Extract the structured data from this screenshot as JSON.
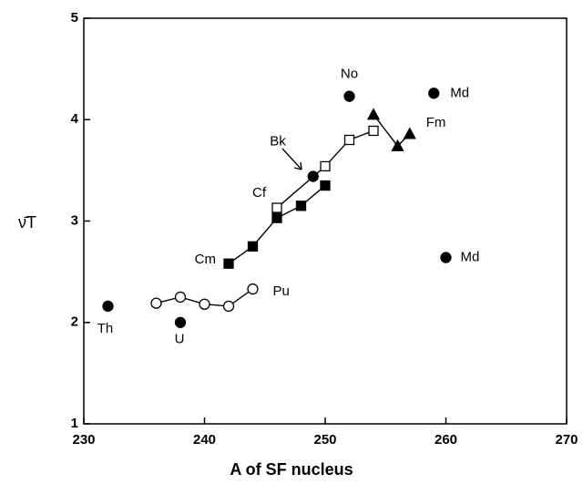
{
  "chart_data": {
    "type": "scatter",
    "xlabel": "A of SF nucleus",
    "ylabel": "ν̄T",
    "xlim": [
      230,
      270
    ],
    "ylim": [
      1,
      5
    ],
    "xticks": [
      230,
      240,
      250,
      260,
      270
    ],
    "yticks": [
      1,
      2,
      3,
      4,
      5
    ],
    "series": [
      {
        "name": "Pu",
        "color": "#000000",
        "marker": "circle",
        "filled": false,
        "line": true,
        "x": [
          236,
          238,
          240,
          242,
          244
        ],
        "values": [
          2.19,
          2.25,
          2.18,
          2.16,
          2.33
        ]
      },
      {
        "name": "Cm",
        "color": "#000000",
        "marker": "square",
        "filled": true,
        "line": true,
        "x": [
          242,
          244,
          246,
          248,
          250
        ],
        "values": [
          2.58,
          2.75,
          3.03,
          3.15,
          3.35
        ]
      },
      {
        "name": "Cf",
        "color": "#000000",
        "marker": "square",
        "filled": false,
        "line": true,
        "x": [
          246,
          250,
          252,
          254
        ],
        "values": [
          3.13,
          3.54,
          3.8,
          3.89
        ]
      },
      {
        "name": "Bk",
        "color": "#000000",
        "marker": "circle",
        "filled": true,
        "line": false,
        "x": [
          249
        ],
        "values": [
          3.44
        ]
      },
      {
        "name": "Fm",
        "color": "#000000",
        "marker": "triangle",
        "filled": true,
        "line": true,
        "x": [
          254,
          256,
          257
        ],
        "values": [
          4.05,
          3.74,
          3.86
        ]
      },
      {
        "name": "Th",
        "color": "#000000",
        "marker": "circle",
        "filled": true,
        "line": false,
        "x": [
          232
        ],
        "values": [
          2.16
        ]
      },
      {
        "name": "U",
        "color": "#000000",
        "marker": "circle",
        "filled": true,
        "line": false,
        "x": [
          238
        ],
        "values": [
          2.0
        ]
      },
      {
        "name": "No",
        "color": "#000000",
        "marker": "circle",
        "filled": true,
        "line": false,
        "x": [
          252
        ],
        "values": [
          4.23
        ]
      },
      {
        "name": "Md",
        "color": "#000000",
        "marker": "circle",
        "filled": true,
        "line": false,
        "x": [
          259,
          260
        ],
        "values": [
          4.26,
          2.64
        ]
      }
    ]
  }
}
